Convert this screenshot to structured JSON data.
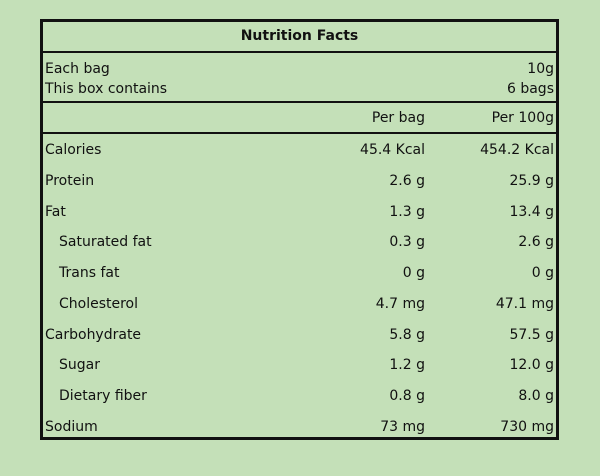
{
  "title": "Nutrition Facts",
  "serving": {
    "each_bag_label": "Each bag",
    "each_bag_value": "10g",
    "box_label": "This box contains",
    "box_value": "6 bags"
  },
  "columns": {
    "per_bag": "Per bag",
    "per_100g": "Per 100g"
  },
  "nutrients": [
    {
      "name": "Calories",
      "per_bag": "45.4 Kcal",
      "per_100g": "454.2 Kcal"
    },
    {
      "name": "Protein",
      "per_bag": "2.6 g",
      "per_100g": "25.9 g"
    },
    {
      "name": "Fat",
      "per_bag": "1.3 g",
      "per_100g": "13.4 g"
    },
    {
      "name": "Saturated fat",
      "per_bag": "0.3 g",
      "per_100g": "2.6 g"
    },
    {
      "name": "Trans fat",
      "per_bag": "0 g",
      "per_100g": "0 g"
    },
    {
      "name": "Cholesterol",
      "per_bag": "4.7 mg",
      "per_100g": "47.1 mg"
    },
    {
      "name": "Carbohydrate",
      "per_bag": "5.8 g",
      "per_100g": "57.5 g"
    },
    {
      "name": "Sugar",
      "per_bag": "1.2 g",
      "per_100g": "12.0 g"
    },
    {
      "name": "Dietary fiber",
      "per_bag": "0.8 g",
      "per_100g": "8.0 g"
    },
    {
      "name": "Sodium",
      "per_bag": "73 mg",
      "per_100g": "730 mg"
    }
  ],
  "colors": {
    "background": "#c4e0b8",
    "ink": "#111111"
  }
}
